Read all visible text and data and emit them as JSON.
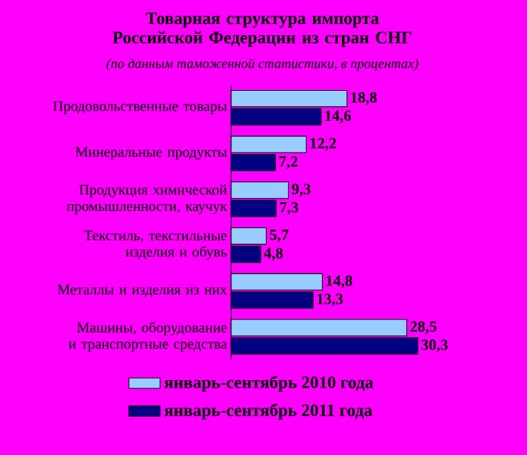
{
  "chart_data": {
    "type": "bar",
    "orientation": "horizontal",
    "title": "Товарная структура импорта Российской Федерации из стран СНГ",
    "subtitle": "(по данным таможенной статистики, в процентах)",
    "categories": [
      "Продовольственные товары",
      "Минеральные продукты",
      "Продукция химической промышленности, каучук",
      "Текстиль, текстильные изделия и обувь",
      "Металлы и изделия из них",
      "Машины, оборудование и транспортные средства"
    ],
    "series": [
      {
        "name": "январь-сентябрь 2010 года",
        "color": "#99ccff",
        "values": [
          18.8,
          12.2,
          9.3,
          5.7,
          14.8,
          28.5
        ],
        "value_labels": [
          "18,8",
          "12,2",
          "9,3",
          "5,7",
          "14,8",
          "28,5"
        ]
      },
      {
        "name": "январь-сентябрь 2011 года",
        "color": "#000080",
        "values": [
          14.6,
          7.2,
          7.3,
          4.8,
          13.3,
          30.3
        ],
        "value_labels": [
          "14,6",
          "7,2",
          "7,3",
          "4,8",
          "13,3",
          "30,3"
        ]
      }
    ],
    "legend": "bottom"
  }
}
